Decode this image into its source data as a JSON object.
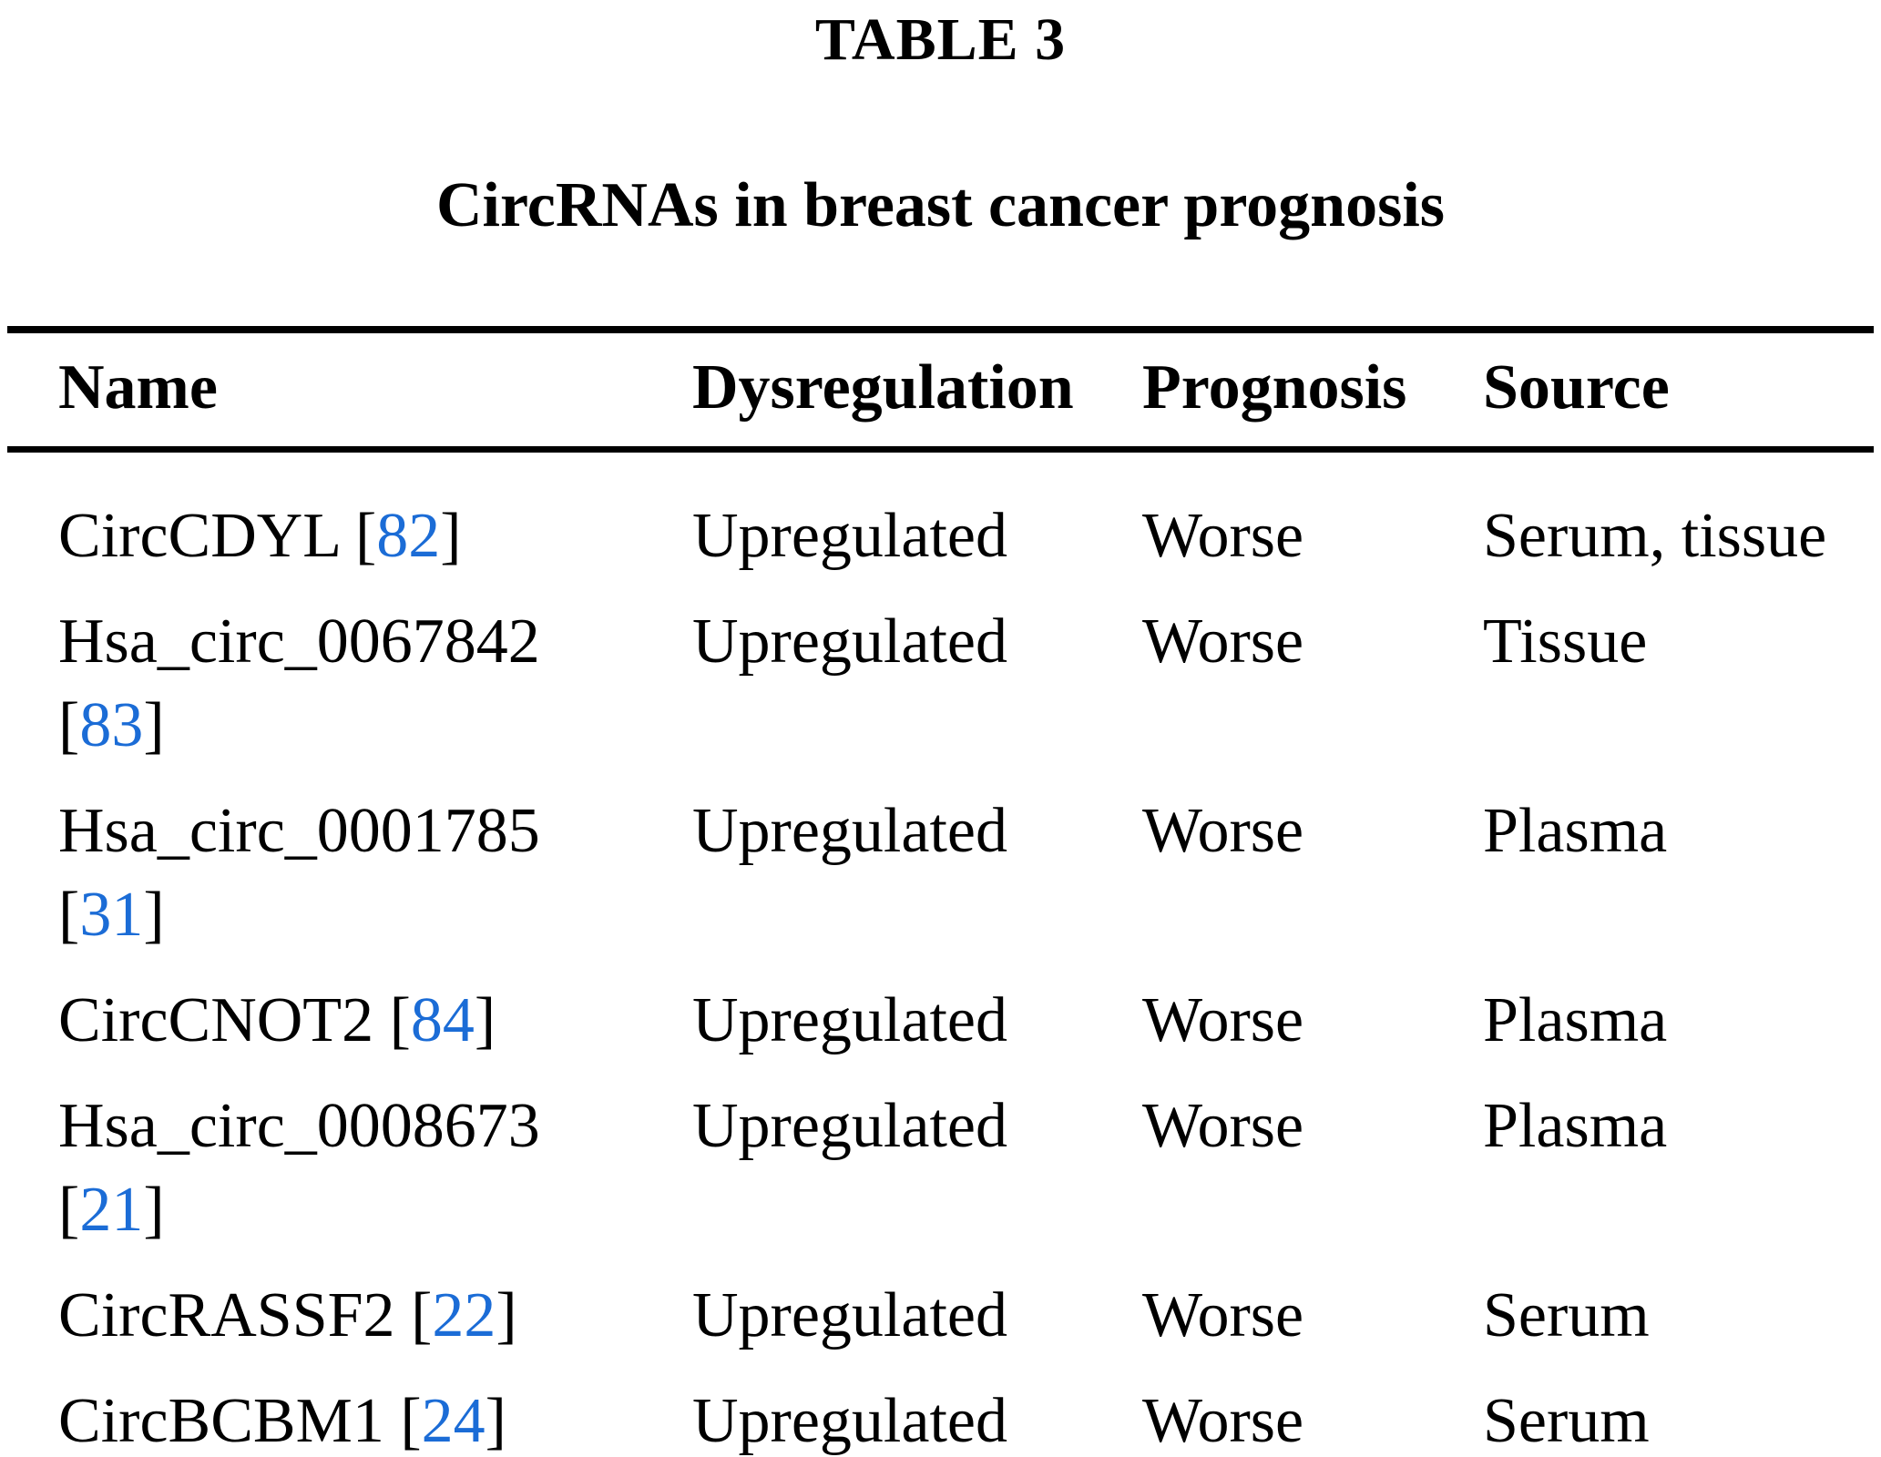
{
  "title": "TABLE 3",
  "subtitle": "CircRNAs in breast cancer prognosis",
  "colors": {
    "text": "#000000",
    "background": "#ffffff",
    "reference_link_blue": "#1b6cd6",
    "rule_black": "#000000"
  },
  "table": {
    "columns": [
      "Name",
      "Dysregulation",
      "Prognosis",
      "Source"
    ],
    "rows": [
      {
        "name": "CircCDYL",
        "ref": "82",
        "dysregulation": "Upregulated",
        "prognosis": "Worse",
        "source": "Serum, tissue"
      },
      {
        "name": "Hsa_circ_0067842",
        "ref": "83",
        "dysregulation": "Upregulated",
        "prognosis": "Worse",
        "source": "Tissue"
      },
      {
        "name": "Hsa_circ_0001785",
        "ref": "31",
        "dysregulation": "Upregulated",
        "prognosis": "Worse",
        "source": "Plasma"
      },
      {
        "name": "CircCNOT2",
        "ref": "84",
        "dysregulation": "Upregulated",
        "prognosis": "Worse",
        "source": "Plasma"
      },
      {
        "name": "Hsa_circ_0008673",
        "ref": "21",
        "dysregulation": "Upregulated",
        "prognosis": "Worse",
        "source": "Plasma"
      },
      {
        "name": "CircRASSF2",
        "ref": "22",
        "dysregulation": "Upregulated",
        "prognosis": "Worse",
        "source": "Serum"
      },
      {
        "name": "CircBCBM1",
        "ref": "24",
        "dysregulation": "Upregulated",
        "prognosis": "Worse",
        "source": "Serum"
      }
    ]
  }
}
